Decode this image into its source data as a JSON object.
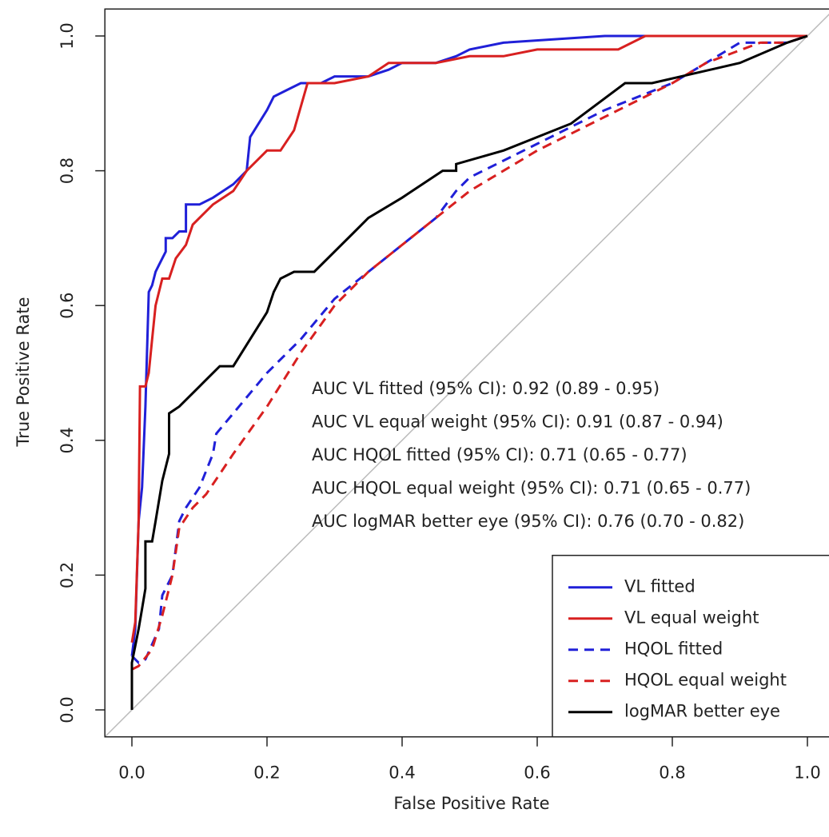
{
  "chart_data": {
    "type": "line",
    "xlabel": "False Positive Rate",
    "ylabel": "True Positive Rate",
    "xlim": [
      -0.04,
      1.04
    ],
    "ylim": [
      -0.04,
      1.04
    ],
    "xticks": [
      {
        "value": 0,
        "label": "0.0"
      },
      0.2,
      0.4,
      0.6,
      0.8,
      {
        "value": 1,
        "label": "1.0"
      }
    ],
    "yticks": [
      {
        "value": 0,
        "label": "0.0"
      },
      0.2,
      0.4,
      0.6,
      0.8,
      {
        "value": 1,
        "label": "1.0"
      }
    ],
    "legend": "bottom-right",
    "annotations": [
      "AUC VL fitted (95% CI): 0.92 (0.89 - 0.95)",
      "AUC VL equal weight (95% CI): 0.91 (0.87 - 0.94)",
      "AUC HQOL fitted (95% CI): 0.71 (0.65 - 0.77)",
      "AUC HQOL equal weight (95% CI): 0.71 (0.65 - 0.77)",
      "AUC logMAR better eye (95% CI): 0.76 (0.70 - 0.82)"
    ],
    "series": [
      {
        "name": "VL fitted",
        "color": "#2020d8",
        "dashed": false,
        "x": [
          0,
          0.005,
          0.01,
          0.015,
          0.02,
          0.025,
          0.03,
          0.035,
          0.04,
          0.05,
          0.05,
          0.06,
          0.07,
          0.08,
          0.08,
          0.1,
          0.12,
          0.15,
          0.17,
          0.175,
          0.2,
          0.21,
          0.23,
          0.25,
          0.28,
          0.3,
          0.35,
          0.38,
          0.4,
          0.45,
          0.48,
          0.5,
          0.55,
          0.7,
          1.0
        ],
        "values": [
          0.08,
          0.12,
          0.28,
          0.33,
          0.45,
          0.62,
          0.63,
          0.65,
          0.66,
          0.68,
          0.7,
          0.7,
          0.71,
          0.71,
          0.75,
          0.75,
          0.76,
          0.78,
          0.8,
          0.85,
          0.89,
          0.91,
          0.92,
          0.93,
          0.93,
          0.94,
          0.94,
          0.95,
          0.96,
          0.96,
          0.97,
          0.98,
          0.99,
          1.0,
          1.0
        ]
      },
      {
        "name": "VL equal weight",
        "color": "#d82020",
        "dashed": false,
        "x": [
          0,
          0.005,
          0.01,
          0.012,
          0.02,
          0.025,
          0.03,
          0.035,
          0.045,
          0.055,
          0.065,
          0.08,
          0.09,
          0.12,
          0.15,
          0.17,
          0.2,
          0.22,
          0.24,
          0.26,
          0.3,
          0.35,
          0.38,
          0.45,
          0.5,
          0.55,
          0.6,
          0.72,
          0.76,
          1.0
        ],
        "values": [
          0.1,
          0.13,
          0.28,
          0.48,
          0.48,
          0.5,
          0.55,
          0.6,
          0.64,
          0.64,
          0.67,
          0.69,
          0.72,
          0.75,
          0.77,
          0.8,
          0.83,
          0.83,
          0.86,
          0.93,
          0.93,
          0.94,
          0.96,
          0.96,
          0.97,
          0.97,
          0.98,
          0.98,
          1.0,
          1.0
        ]
      },
      {
        "name": "HQOL fitted",
        "color": "#2020d8",
        "dashed": true,
        "x": [
          0,
          0.01,
          0.02,
          0.04,
          0.045,
          0.06,
          0.07,
          0.08,
          0.1,
          0.12,
          0.125,
          0.15,
          0.2,
          0.25,
          0.3,
          0.35,
          0.4,
          0.45,
          0.48,
          0.5,
          0.6,
          0.7,
          0.8,
          0.85,
          0.9,
          0.97,
          1.0
        ],
        "values": [
          0.08,
          0.07,
          0.075,
          0.12,
          0.17,
          0.2,
          0.28,
          0.3,
          0.33,
          0.38,
          0.41,
          0.44,
          0.5,
          0.55,
          0.61,
          0.65,
          0.69,
          0.73,
          0.77,
          0.79,
          0.84,
          0.89,
          0.93,
          0.96,
          0.99,
          0.99,
          1.0
        ]
      },
      {
        "name": "HQOL equal weight",
        "color": "#d82020",
        "dashed": true,
        "x": [
          0,
          0.01,
          0.03,
          0.045,
          0.06,
          0.07,
          0.09,
          0.11,
          0.13,
          0.15,
          0.2,
          0.25,
          0.3,
          0.35,
          0.4,
          0.45,
          0.5,
          0.6,
          0.7,
          0.8,
          0.85,
          0.93,
          0.97,
          1.0
        ],
        "values": [
          0.06,
          0.065,
          0.09,
          0.14,
          0.2,
          0.27,
          0.3,
          0.32,
          0.35,
          0.38,
          0.45,
          0.53,
          0.6,
          0.65,
          0.69,
          0.73,
          0.77,
          0.83,
          0.88,
          0.93,
          0.96,
          0.99,
          0.99,
          1.0
        ]
      },
      {
        "name": "logMAR better eye",
        "color": "#000000",
        "dashed": false,
        "x": [
          0,
          0,
          0.01,
          0.015,
          0.02,
          0.02,
          0.03,
          0.035,
          0.045,
          0.055,
          0.055,
          0.07,
          0.1,
          0.13,
          0.15,
          0.2,
          0.21,
          0.22,
          0.24,
          0.27,
          0.33,
          0.35,
          0.4,
          0.46,
          0.48,
          0.48,
          0.55,
          0.65,
          0.73,
          0.77,
          0.9,
          0.97,
          1.0
        ],
        "values": [
          0,
          0.07,
          0.12,
          0.15,
          0.18,
          0.25,
          0.25,
          0.28,
          0.34,
          0.38,
          0.44,
          0.45,
          0.48,
          0.51,
          0.51,
          0.59,
          0.62,
          0.64,
          0.65,
          0.65,
          0.71,
          0.73,
          0.76,
          0.8,
          0.8,
          0.81,
          0.83,
          0.87,
          0.93,
          0.93,
          0.96,
          0.99,
          1.0
        ]
      }
    ]
  }
}
